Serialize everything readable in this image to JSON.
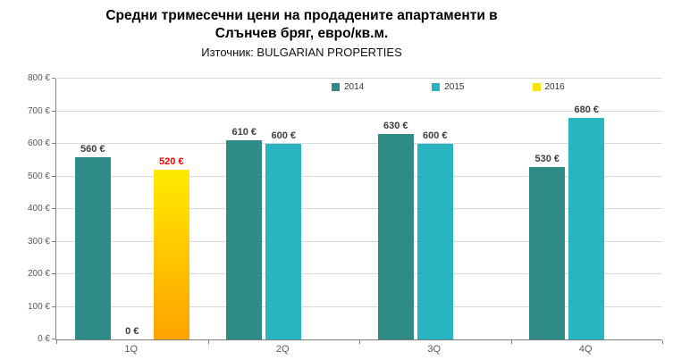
{
  "header": {
    "title_line1": "Средни тримесечни цени на продадените апартаменти в",
    "title_line2": "Слънчев бряг, евро/кв.м.",
    "subtitle": "Източник: BULGARIAN PROPERTIES"
  },
  "chart_data": {
    "type": "bar",
    "title": "Средни тримесечни цени на продадените апартаменти в Слънчев бряг, евро/кв.м.",
    "source": "Източник: BULGARIAN PROPERTIES",
    "categories": [
      "1Q",
      "2Q",
      "3Q",
      "4Q"
    ],
    "series": [
      {
        "name": "2014",
        "color": "#2E8B85",
        "values": [
          560,
          610,
          630,
          530
        ]
      },
      {
        "name": "2015",
        "color": "#29B4C2",
        "values": [
          0,
          600,
          600,
          680
        ]
      },
      {
        "name": "2016",
        "color": "#FFE208",
        "gradient": [
          "#FFEA00",
          "#FFA300"
        ],
        "label_color": "#FF0000",
        "values": [
          520,
          null,
          null,
          null
        ]
      }
    ],
    "value_suffix": " €",
    "ylim": [
      0,
      800
    ],
    "ytick_step": 100,
    "grid": true,
    "legend_position": "top-inside",
    "legend_labels": [
      "2014",
      "2015",
      "2016"
    ]
  }
}
